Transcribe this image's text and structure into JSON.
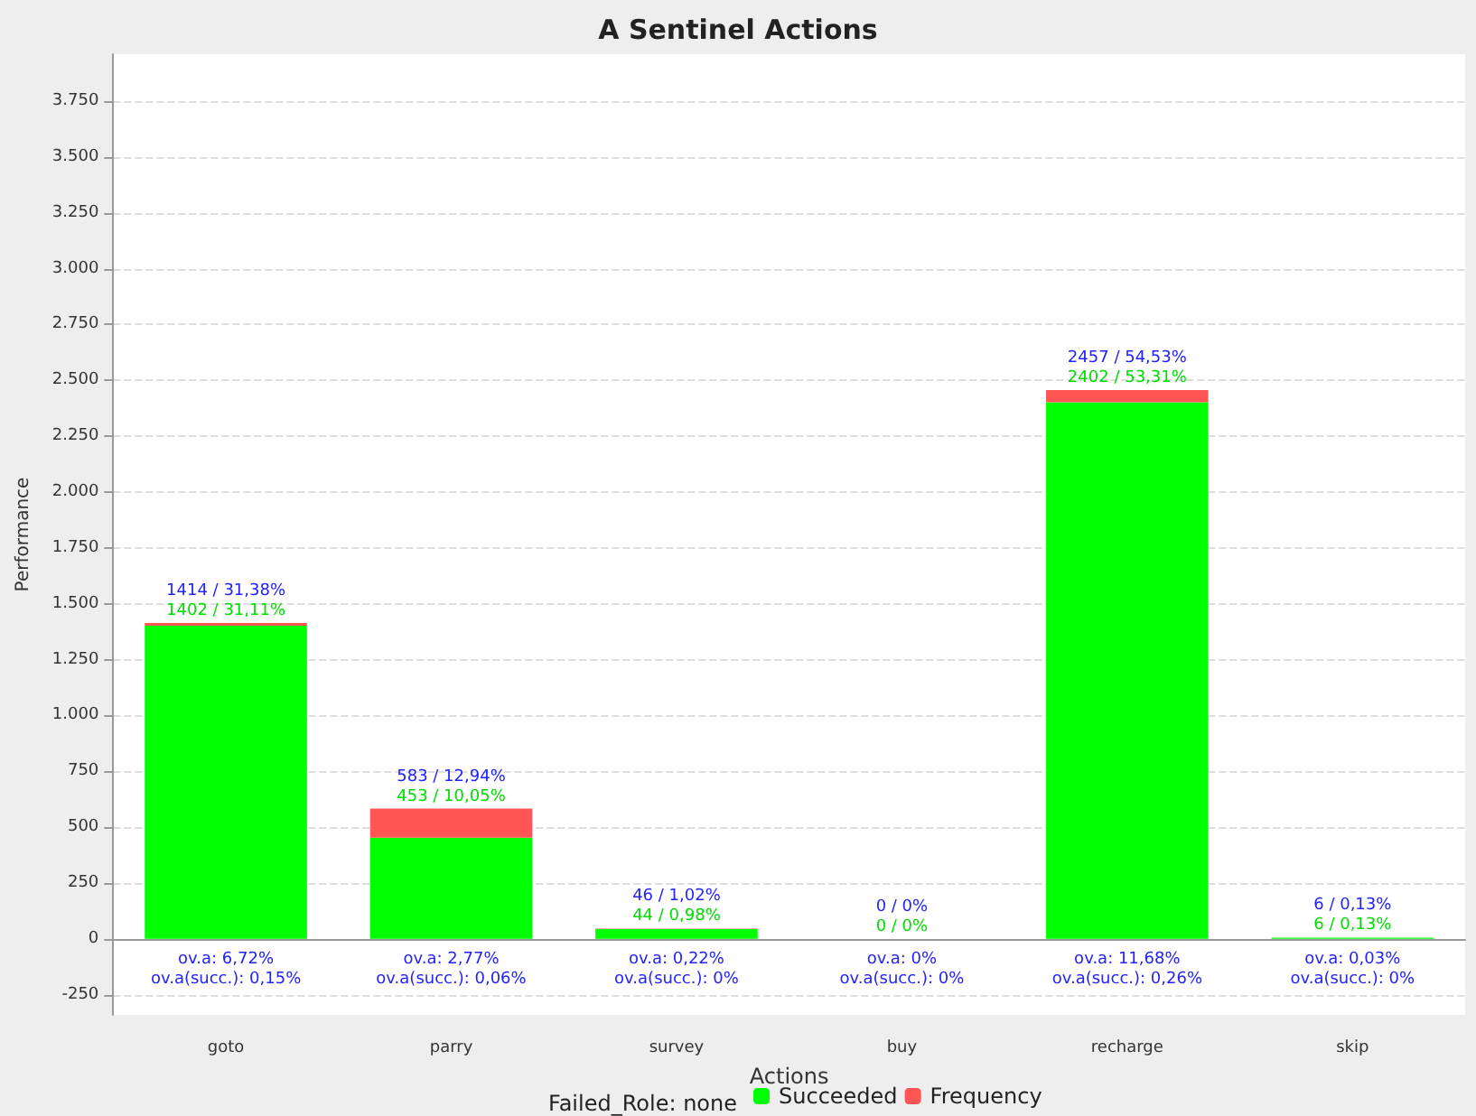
{
  "chart_data": {
    "type": "bar",
    "title": "A Sentinel Actions",
    "xlabel": "Actions",
    "ylabel": "Performance",
    "legend_title": "Failed_Role: none",
    "categories": [
      "goto",
      "parry",
      "survey",
      "buy",
      "recharge",
      "skip"
    ],
    "stacked": true,
    "series": [
      {
        "name": "Succeeded",
        "color": "#00ff00",
        "values": [
          1402,
          453,
          44,
          0,
          2402,
          6
        ],
        "value_labels": [
          "1402 / 31,11%",
          "453 / 10,05%",
          "44 / 0,98%",
          "0 / 0%",
          "2402 / 53,31%",
          "6 / 0,13%"
        ]
      },
      {
        "name": "Frequency",
        "color": "#ff5555",
        "values": [
          12,
          130,
          2,
          0,
          55,
          0
        ]
      }
    ],
    "totals": [
      "1414 / 31,38%",
      "583 / 12,94%",
      "46 / 1,02%",
      "0 / 0%",
      "2457 / 54,53%",
      "6 / 0,13%"
    ],
    "annotations": [
      {
        "text": "ov.a: 6,72%\nov.a(succ.): 0,15%",
        "x": "goto",
        "y": 0
      },
      {
        "text": "ov.a: 2,77%\nov.a(succ.): 0,06%",
        "x": "parry",
        "y": 0
      },
      {
        "text": "ov.a: 0,22%\nov.a(succ.): 0%",
        "x": "survey",
        "y": 0
      },
      {
        "text": "ov.a: 0%\nov.a(succ.): 0%",
        "x": "buy",
        "y": 0
      },
      {
        "text": "ov.a: 11,68%\nov.a(succ.): 0,26%",
        "x": "recharge",
        "y": 0
      },
      {
        "text": "ov.a: 0,03%\nov.a(succ.): 0%",
        "x": "skip",
        "y": 0
      }
    ],
    "ylim": [
      -340,
      3960
    ],
    "yticks": [
      -250,
      0,
      250,
      500,
      750,
      {
        "value": 1000,
        "label": "1.000"
      },
      {
        "value": 1250,
        "label": "1.250"
      },
      {
        "value": 1500,
        "label": "1.500"
      },
      {
        "value": 1750,
        "label": "1.750"
      },
      {
        "value": 2000,
        "label": "2.000"
      },
      {
        "value": 2250,
        "label": "2.250"
      },
      {
        "value": 2500,
        "label": "2.500"
      },
      {
        "value": 2750,
        "label": "2.750"
      },
      {
        "value": 3000,
        "label": "3.000"
      },
      {
        "value": 3250,
        "label": "3.250"
      },
      {
        "value": 3500,
        "label": "3.500"
      },
      {
        "value": 3750,
        "label": "3.750"
      }
    ],
    "grid": "y",
    "legend": "bottom"
  }
}
